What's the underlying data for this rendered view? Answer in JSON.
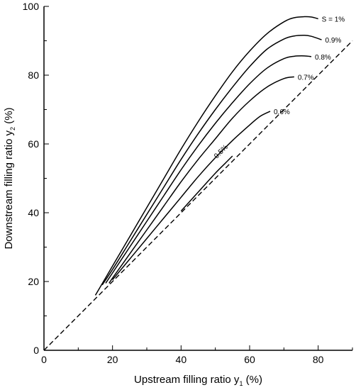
{
  "chart_data": {
    "type": "line",
    "title": "",
    "xlabel": "Upstream filling ratio y",
    "xlabel_sub": "1",
    "xlabel_suffix": " (%)",
    "ylabel": "Downstream filling ratio y",
    "ylabel_sub": "2",
    "ylabel_suffix": " (%)",
    "xlim": [
      0,
      90
    ],
    "ylim": [
      0,
      100
    ],
    "xticks": [
      0,
      20,
      40,
      60,
      80
    ],
    "yticks": [
      0,
      20,
      40,
      60,
      80,
      100
    ],
    "grid": false,
    "legend": "none",
    "reference_line": {
      "style": "dashed",
      "points": [
        [
          0,
          0
        ],
        [
          90,
          90
        ]
      ]
    },
    "series": [
      {
        "label": "S = 1%",
        "x": [
          15,
          20,
          25,
          30,
          35,
          40,
          45,
          50,
          55,
          60,
          65,
          70,
          73,
          76,
          78,
          80
        ],
        "y": [
          16,
          24.5,
          33,
          41.5,
          50,
          58.5,
          66.5,
          74,
          81,
          87,
          92,
          95.5,
          96.7,
          97,
          96.9,
          96.4
        ]
      },
      {
        "label": "0.9%",
        "x": [
          17,
          20,
          25,
          30,
          35,
          40,
          45,
          50,
          55,
          60,
          65,
          70,
          73,
          76,
          78,
          81
        ],
        "y": [
          19,
          23.5,
          31.5,
          39.5,
          47.5,
          55.5,
          63,
          70,
          76.5,
          82.5,
          87.5,
          90.5,
          91.4,
          91.6,
          91.3,
          90.3
        ]
      },
      {
        "label": "0.8%",
        "x": [
          18,
          20,
          25,
          30,
          35,
          40,
          45,
          50,
          55,
          60,
          65,
          70,
          73,
          76,
          78
        ],
        "y": [
          19.5,
          22.5,
          30,
          37.5,
          45,
          52.5,
          59.5,
          66,
          72,
          77.5,
          82,
          84.8,
          85.5,
          85.6,
          85.4
        ]
      },
      {
        "label": "0.7%",
        "x": [
          19,
          20,
          25,
          30,
          35,
          40,
          45,
          50,
          55,
          60,
          65,
          70,
          73
        ],
        "y": [
          19.5,
          21,
          28,
          35,
          42,
          49,
          55.5,
          61.5,
          67.5,
          72.5,
          76.5,
          79,
          79.5
        ]
      },
      {
        "label": "0.6%",
        "x": [
          20,
          25,
          30,
          35,
          40,
          45,
          50,
          55,
          60,
          63,
          66
        ],
        "y": [
          20.5,
          26.5,
          32.5,
          38.5,
          44.5,
          50.5,
          56,
          61,
          65.5,
          68,
          69.5
        ]
      },
      {
        "label": "0.5%",
        "x": [
          40,
          45,
          50,
          53,
          55
        ],
        "y": [
          40.5,
          46,
          51.5,
          54.5,
          56.5
        ]
      }
    ]
  }
}
